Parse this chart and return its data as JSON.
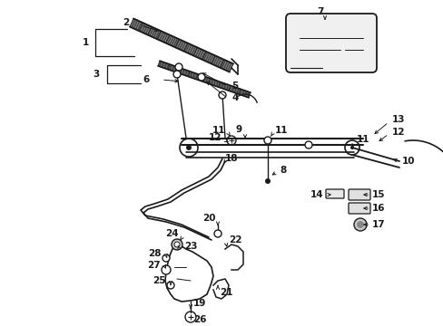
{
  "bg_color": "#ffffff",
  "lc": "#1a1a1a",
  "figsize": [
    4.89,
    3.6
  ],
  "dpi": 100,
  "fs": 7.5,
  "fw": "bold"
}
